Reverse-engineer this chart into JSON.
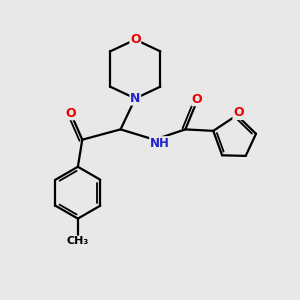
{
  "background_color": "#e8e8e8",
  "bond_color": "#000000",
  "atom_colors": {
    "O": "#ee0000",
    "N": "#2222cc",
    "C": "#000000"
  },
  "lw": 1.6,
  "lw_double": 1.3
}
